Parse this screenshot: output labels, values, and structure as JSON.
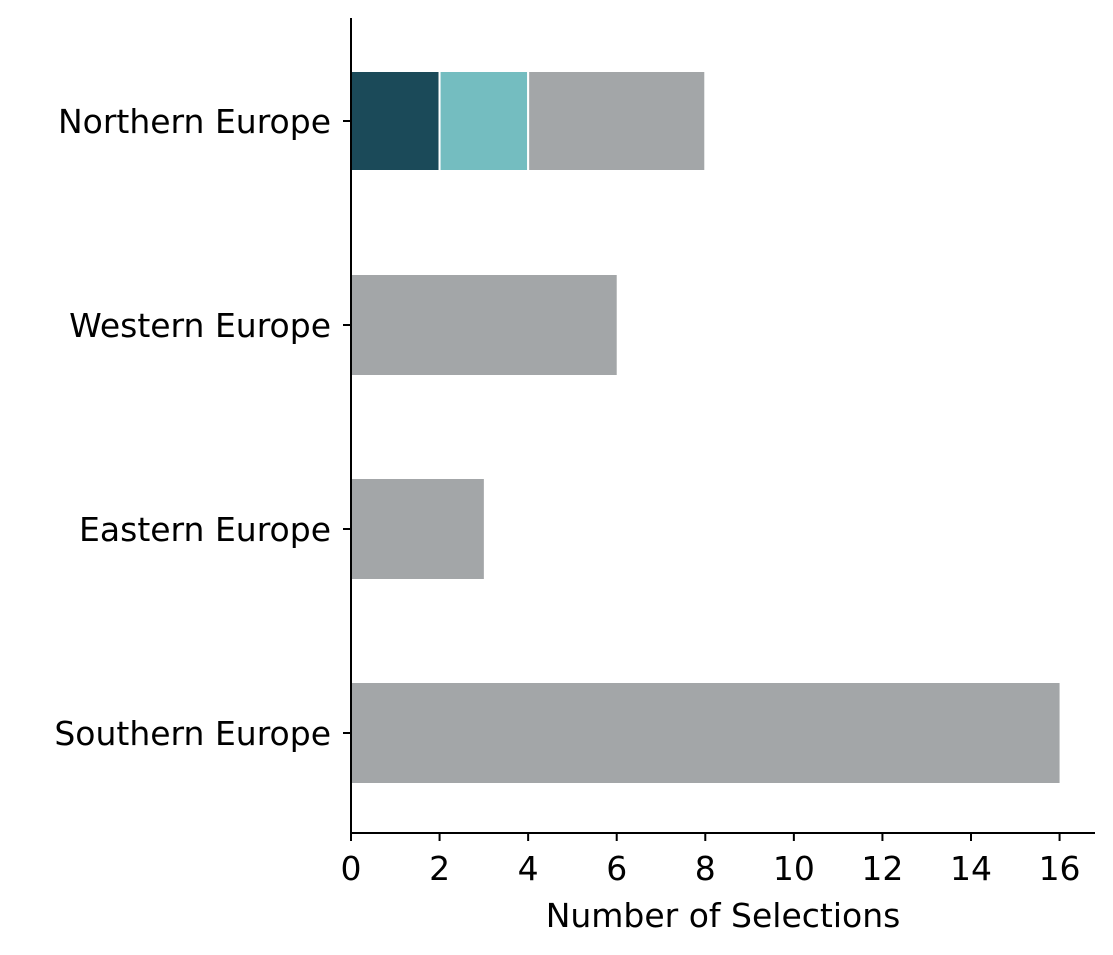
{
  "chart_data": {
    "type": "bar",
    "orientation": "horizontal",
    "stacked": true,
    "categories": [
      "Northern Europe",
      "Western Europe",
      "Eastern Europe",
      "Southern Europe"
    ],
    "segments": [
      [
        {
          "value": 2,
          "color": "#1b4a59"
        },
        {
          "value": 2,
          "color": "#74bdc0"
        },
        {
          "value": 4,
          "color": "#a3a6a8"
        }
      ],
      [
        {
          "value": 6,
          "color": "#a3a6a8"
        }
      ],
      [
        {
          "value": 3,
          "color": "#a3a6a8"
        }
      ],
      [
        {
          "value": 16,
          "color": "#a3a6a8"
        }
      ]
    ],
    "totals": [
      8,
      6,
      3,
      16
    ],
    "xlabel": "Number of Selections",
    "ylabel": "",
    "xlim": [
      0,
      16.8
    ],
    "xticks": [
      "0",
      "2",
      "4",
      "6",
      "8",
      "10",
      "12",
      "14",
      "16"
    ],
    "grid": false,
    "legend": "none"
  }
}
